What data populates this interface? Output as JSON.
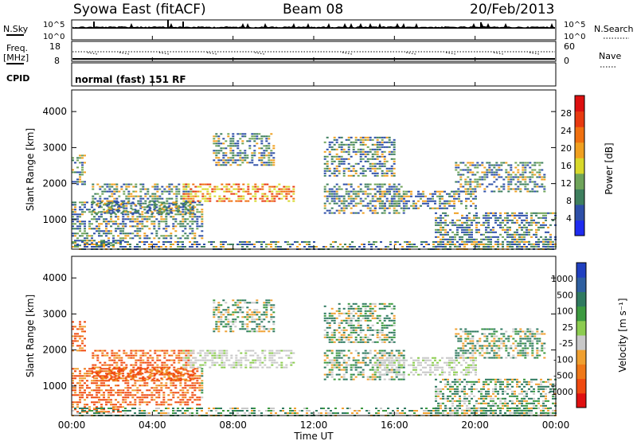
{
  "header": {
    "station": "Syowa East (fitACF)",
    "beam": "Beam 08",
    "date": "20/Feb/2013"
  },
  "panels": {
    "nsky": {
      "label": "N.Sky",
      "right_label": "N.Search",
      "left_ticks": [
        "10^5",
        "10^0"
      ],
      "right_ticks": [
        "10^5",
        "10^0"
      ]
    },
    "freq": {
      "label_line1": "Freq.",
      "label_line2": "[MHz]",
      "right_label": "Nave",
      "left_ticks": [
        "18",
        "8"
      ],
      "right_ticks": [
        "60",
        "0"
      ]
    },
    "cpid": {
      "label": "CPID",
      "text": "normal (fast) 151 RF"
    }
  },
  "x_axis": {
    "label": "Time UT",
    "ticks": [
      "00:00",
      "04:00",
      "08:00",
      "12:00",
      "16:00",
      "20:00",
      "00:00"
    ]
  },
  "power_panel": {
    "ylabel": "Slant Range [km]",
    "yticks": [
      "1000",
      "2000",
      "3000",
      "4000"
    ],
    "colorbar_label": "Power [dB]",
    "colorbar_ticks": [
      "4",
      "8",
      "12",
      "16",
      "20",
      "24",
      "28"
    ],
    "colorbar_colors": [
      "#1f2cf0",
      "#2e4fa8",
      "#3e7f5e",
      "#6fa45a",
      "#d8d82a",
      "#f0a020",
      "#f07010",
      "#e83a10",
      "#dd1010"
    ]
  },
  "velocity_panel": {
    "ylabel": "Slant Range [km]",
    "yticks": [
      "1000",
      "2000",
      "3000",
      "4000"
    ],
    "colorbar_label": "Velocity [m s⁻¹]",
    "colorbar_ticks": [
      "1000",
      "500",
      "100",
      "25",
      "-25",
      "-100",
      "-500",
      "-1000"
    ],
    "colorbar_colors": [
      "#2040c0",
      "#2e5fa0",
      "#2f7a60",
      "#3c9a40",
      "#8ccc50",
      "#c8c8c8",
      "#f0a030",
      "#f07818",
      "#f04a10",
      "#e01010"
    ]
  },
  "chart_data": {
    "type": "heatmap",
    "x_range_hours": [
      0,
      24
    ],
    "y_range_km": [
      180,
      4600
    ],
    "echo_regions": [
      {
        "t": [
          0.0,
          0.7
        ],
        "r": [
          2000,
          2800
        ]
      },
      {
        "t": [
          0.0,
          2.5
        ],
        "r": [
          300,
          1500
        ]
      },
      {
        "t": [
          1.0,
          6.0
        ],
        "r": [
          1200,
          2000
        ]
      },
      {
        "t": [
          2.5,
          6.5
        ],
        "r": [
          500,
          1500
        ]
      },
      {
        "t": [
          5.5,
          11.0
        ],
        "r": [
          1500,
          2000
        ]
      },
      {
        "t": [
          7.0,
          10.0
        ],
        "r": [
          2500,
          3400
        ]
      },
      {
        "t": [
          12.5,
          16.5
        ],
        "r": [
          1200,
          2000
        ]
      },
      {
        "t": [
          12.5,
          16.0
        ],
        "r": [
          2200,
          3300
        ]
      },
      {
        "t": [
          15.0,
          20.0
        ],
        "r": [
          1300,
          1800
        ]
      },
      {
        "t": [
          18.0,
          24.0
        ],
        "r": [
          200,
          1200
        ]
      },
      {
        "t": [
          19.0,
          23.5
        ],
        "r": [
          1800,
          2600
        ]
      },
      {
        "t": [
          0.0,
          24.0
        ],
        "r": [
          180,
          400
        ]
      }
    ]
  }
}
